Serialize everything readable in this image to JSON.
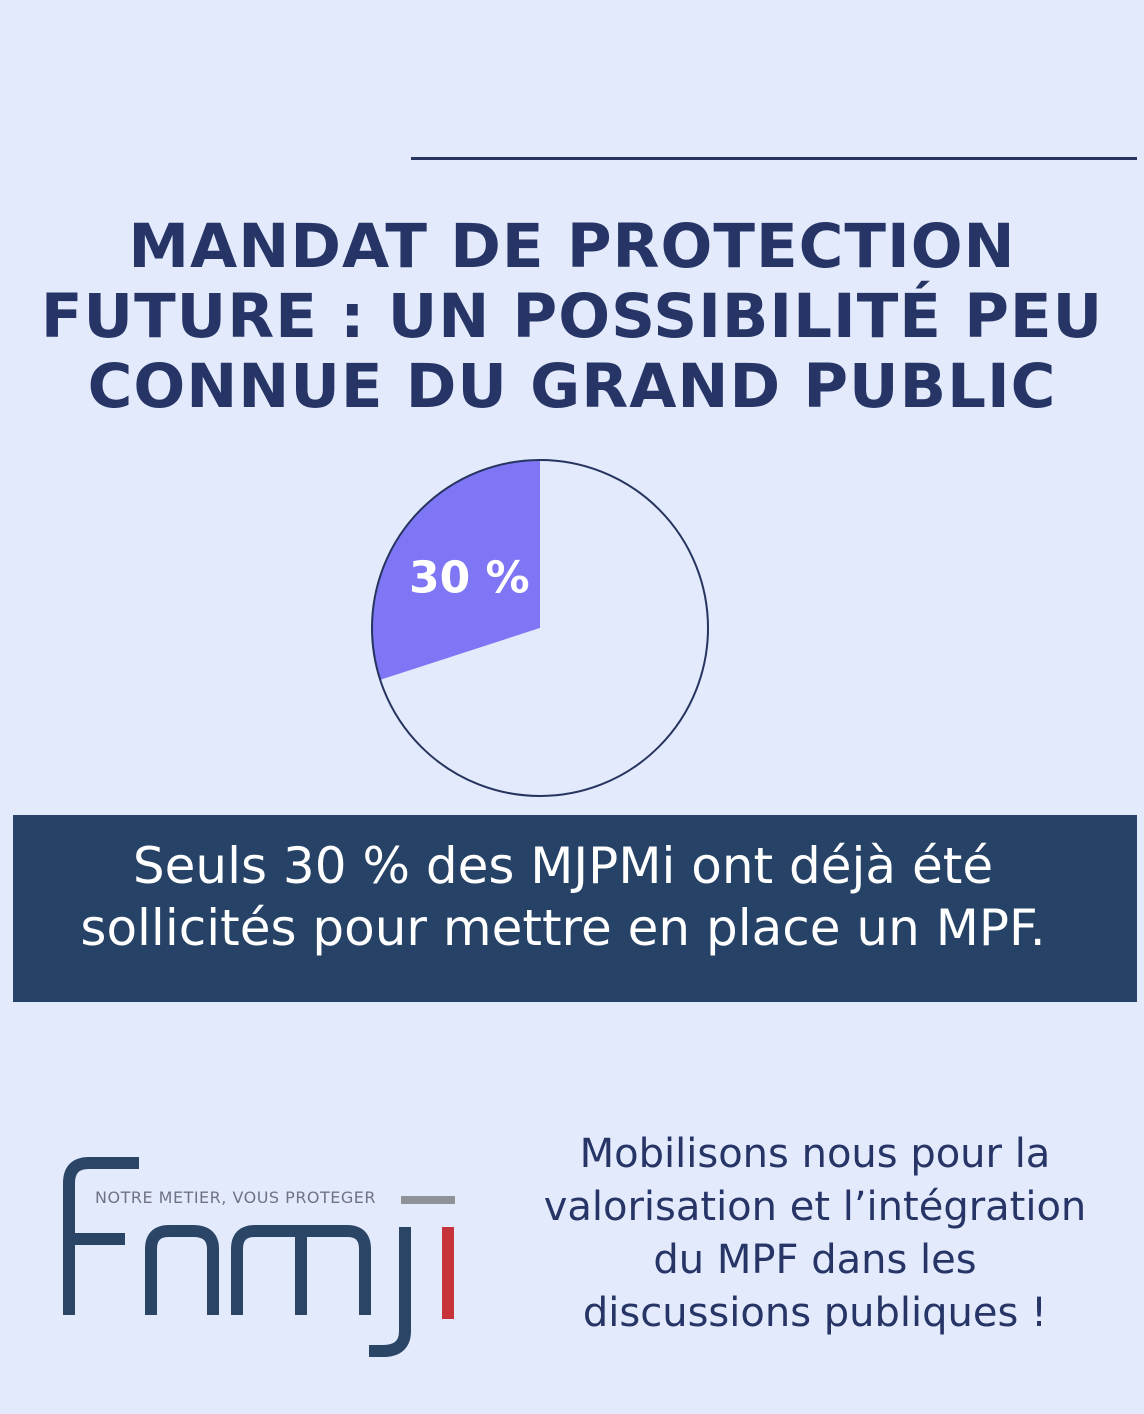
{
  "headline": {
    "lines": [
      "MANDAT DE PROTECTION",
      "FUTURE : UN POSSIBILITÉ PEU",
      "CONNUE DU GRAND PUBLIC"
    ]
  },
  "chart_data": {
    "type": "pie",
    "slices": [
      {
        "label": "30 %",
        "value": 30,
        "color": "#7f76f5"
      },
      {
        "label": "",
        "value": 70,
        "color": "#e3eafc"
      }
    ],
    "outline_color": "#26345f"
  },
  "banner": {
    "lines": [
      "Seuls 30 %  des MJPMi ont déjà été",
      "sollicités pour mettre en place un MPF."
    ]
  },
  "logo": {
    "tagline": "NOTRE METIER, VOUS PROTEGER",
    "name": "fnmji",
    "colors": {
      "letters": "#2b4566",
      "accent": "#c6333a",
      "bar": "#8e9299"
    }
  },
  "cta": {
    "lines": [
      "Mobilisons nous pour la",
      "valorisation et l’intégration",
      "du MPF dans les",
      "discussions publiques !"
    ]
  },
  "colors": {
    "background": "#e3eafc",
    "navy": "#263466",
    "banner": "#264266"
  }
}
